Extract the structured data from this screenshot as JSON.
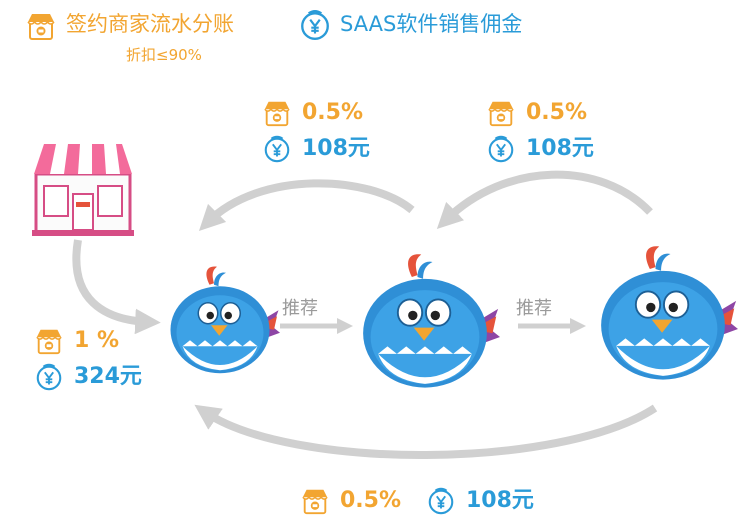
{
  "legend": {
    "merchant_label": "签约商家流水分账",
    "merchant_sub": "折扣≤90%",
    "saas_label": "SAAS软件销售佣金"
  },
  "flows": {
    "top_left": {
      "pct": "0.5%",
      "amount": "108元"
    },
    "top_right": {
      "pct": "0.5%",
      "amount": "108元"
    },
    "left": {
      "pct": "1 %",
      "amount": "324元"
    },
    "bottom": {
      "pct": "0.5%",
      "amount": "108元"
    }
  },
  "referral": {
    "label_1": "推荐",
    "label_2": "推荐"
  },
  "colors": {
    "gold": "#f2a531",
    "blue": "#2a9bd8",
    "arrow_gray": "#d0d0d0",
    "bird_blue": "#2f8fd6",
    "crest_red": "#e5533b"
  },
  "icons": {
    "shop": "shop-icon",
    "yen": "yen-coin-icon",
    "store": "storefront-illustration",
    "bird": "bird-mascot"
  }
}
